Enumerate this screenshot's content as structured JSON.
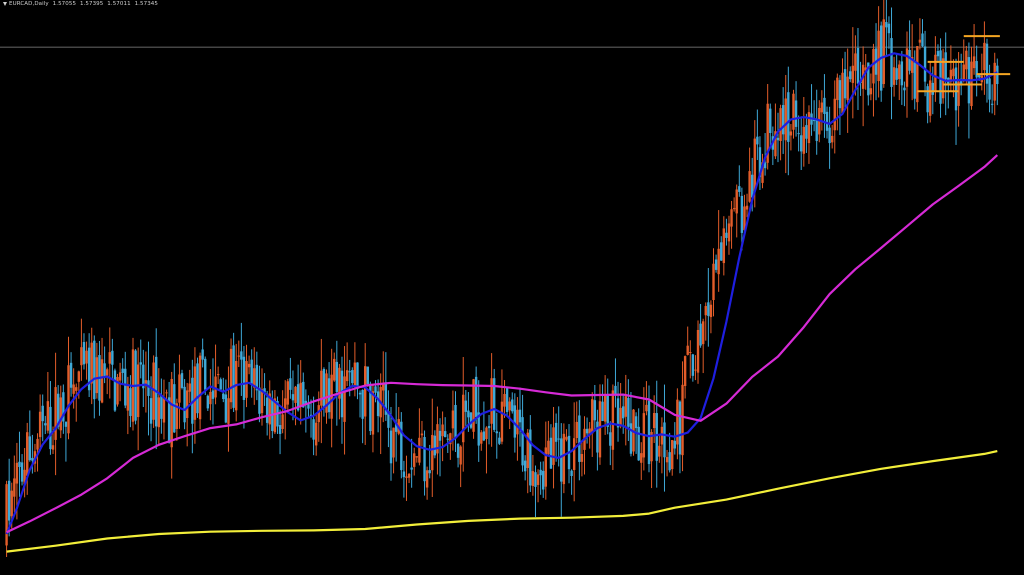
{
  "header": {
    "symbol": "EURCAD,Daily",
    "open": "1.57055",
    "high": "1.57395",
    "low": "1.57011",
    "close": "1.57345"
  },
  "colors": {
    "background": "#000000",
    "bull_candle": "#e35d2a",
    "bear_candle": "#3fa9d8",
    "ma_fast": "#1f1fe0",
    "ma_mid": "#d62ad6",
    "ma_slow": "#f2ee3a",
    "levels": "#f5a623",
    "price_line": "#8a8a8a"
  },
  "chart_data": {
    "type": "candlestick",
    "instrument": "EURCAD",
    "timeframe": "Daily",
    "price_range": [
      1.4575,
      1.5821
    ],
    "current_price_line": 1.57345,
    "moving_averages": [
      {
        "color": "#1f1fe0",
        "points": [
          [
            1,
            1.4659
          ],
          [
            5,
            1.4716
          ],
          [
            10,
            1.4801
          ],
          [
            15,
            1.4857
          ],
          [
            20,
            1.4892
          ],
          [
            25,
            1.4942
          ],
          [
            30,
            1.4979
          ],
          [
            35,
            1.5002
          ],
          [
            40,
            1.5007
          ],
          [
            45,
            1.4991
          ],
          [
            50,
            1.4986
          ],
          [
            55,
            1.4989
          ],
          [
            60,
            1.497
          ],
          [
            65,
            1.4945
          ],
          [
            70,
            1.4933
          ],
          [
            75,
            1.4961
          ],
          [
            80,
            1.4985
          ],
          [
            85,
            1.4973
          ],
          [
            90,
            1.4988
          ],
          [
            95,
            1.4993
          ],
          [
            100,
            1.4975
          ],
          [
            105,
            1.4951
          ],
          [
            110,
            1.4928
          ],
          [
            115,
            1.491
          ],
          [
            120,
            1.492
          ],
          [
            125,
            1.4943
          ],
          [
            130,
            1.497
          ],
          [
            135,
            1.4986
          ],
          [
            140,
            1.4983
          ],
          [
            145,
            1.4957
          ],
          [
            150,
            1.492
          ],
          [
            155,
            1.4877
          ],
          [
            160,
            1.4853
          ],
          [
            165,
            1.4845
          ],
          [
            170,
            1.4851
          ],
          [
            175,
            1.4871
          ],
          [
            180,
            1.49
          ],
          [
            185,
            1.4924
          ],
          [
            190,
            1.4935
          ],
          [
            195,
            1.492
          ],
          [
            200,
            1.4891
          ],
          [
            205,
            1.4855
          ],
          [
            210,
            1.4833
          ],
          [
            215,
            1.4827
          ],
          [
            220,
            1.4842
          ],
          [
            225,
            1.4869
          ],
          [
            230,
            1.4893
          ],
          [
            235,
            1.4903
          ],
          [
            240,
            1.4898
          ],
          [
            245,
            1.4882
          ],
          [
            250,
            1.4875
          ],
          [
            255,
            1.4879
          ],
          [
            260,
            1.4874
          ],
          [
            265,
            1.4883
          ],
          [
            270,
            1.4915
          ],
          [
            275,
            1.5003
          ],
          [
            280,
            1.5128
          ],
          [
            285,
            1.527
          ],
          [
            290,
            1.5397
          ],
          [
            295,
            1.5491
          ],
          [
            300,
            1.5548
          ],
          [
            305,
            1.5575
          ],
          [
            310,
            1.558
          ],
          [
            315,
            1.5575
          ],
          [
            320,
            1.5565
          ],
          [
            325,
            1.5587
          ],
          [
            330,
            1.564
          ],
          [
            335,
            1.5689
          ],
          [
            340,
            1.5711
          ],
          [
            345,
            1.5721
          ],
          [
            350,
            1.5715
          ],
          [
            355,
            1.5695
          ],
          [
            360,
            1.5672
          ],
          [
            365,
            1.566
          ],
          [
            370,
            1.5662
          ],
          [
            375,
            1.5661
          ],
          [
            380,
            1.5665
          ],
          [
            385,
            1.5679
          ]
        ]
      },
      {
        "color": "#d62ad6",
        "points": [
          [
            1,
            1.4663
          ],
          [
            10,
            1.4687
          ],
          [
            20,
            1.4716
          ],
          [
            30,
            1.4746
          ],
          [
            40,
            1.4782
          ],
          [
            50,
            1.4827
          ],
          [
            60,
            1.4856
          ],
          [
            70,
            1.4875
          ],
          [
            80,
            1.4893
          ],
          [
            90,
            1.4901
          ],
          [
            100,
            1.4917
          ],
          [
            110,
            1.4931
          ],
          [
            120,
            1.4952
          ],
          [
            130,
            1.497
          ],
          [
            140,
            1.4987
          ],
          [
            150,
            1.4993
          ],
          [
            160,
            1.499
          ],
          [
            170,
            1.4988
          ],
          [
            180,
            1.4987
          ],
          [
            190,
            1.4986
          ],
          [
            200,
            1.498
          ],
          [
            210,
            1.4972
          ],
          [
            220,
            1.4965
          ],
          [
            230,
            1.4966
          ],
          [
            240,
            1.4967
          ],
          [
            250,
            1.4956
          ],
          [
            260,
            1.4922
          ],
          [
            270,
            1.4909
          ],
          [
            280,
            1.4947
          ],
          [
            290,
            1.5006
          ],
          [
            300,
            1.5051
          ],
          [
            310,
            1.5116
          ],
          [
            320,
            1.5189
          ],
          [
            330,
            1.5244
          ],
          [
            340,
            1.5291
          ],
          [
            350,
            1.5339
          ],
          [
            360,
            1.5387
          ],
          [
            370,
            1.5428
          ],
          [
            380,
            1.547
          ],
          [
            385,
            1.5496
          ]
        ]
      },
      {
        "color": "#f2ee3a",
        "points": [
          [
            1,
            1.462
          ],
          [
            20,
            1.4633
          ],
          [
            40,
            1.4649
          ],
          [
            60,
            1.4659
          ],
          [
            80,
            1.4664
          ],
          [
            100,
            1.4666
          ],
          [
            120,
            1.4667
          ],
          [
            140,
            1.467
          ],
          [
            160,
            1.468
          ],
          [
            180,
            1.4688
          ],
          [
            200,
            1.4693
          ],
          [
            220,
            1.4695
          ],
          [
            240,
            1.4699
          ],
          [
            250,
            1.4704
          ],
          [
            260,
            1.4717
          ],
          [
            280,
            1.4735
          ],
          [
            300,
            1.4759
          ],
          [
            320,
            1.4782
          ],
          [
            340,
            1.4803
          ],
          [
            360,
            1.482
          ],
          [
            380,
            1.4836
          ],
          [
            385,
            1.4842
          ]
        ]
      }
    ],
    "levels": [
      {
        "price": 1.5759,
        "x_from": 372,
        "x_to": 386
      },
      {
        "price": 1.5702,
        "x_from": 358,
        "x_to": 372
      },
      {
        "price": 1.5675,
        "x_from": 377,
        "x_to": 390
      },
      {
        "price": 1.5652,
        "x_from": 364,
        "x_to": 379
      },
      {
        "price": 1.5637,
        "x_from": 354,
        "x_to": 370
      }
    ]
  }
}
